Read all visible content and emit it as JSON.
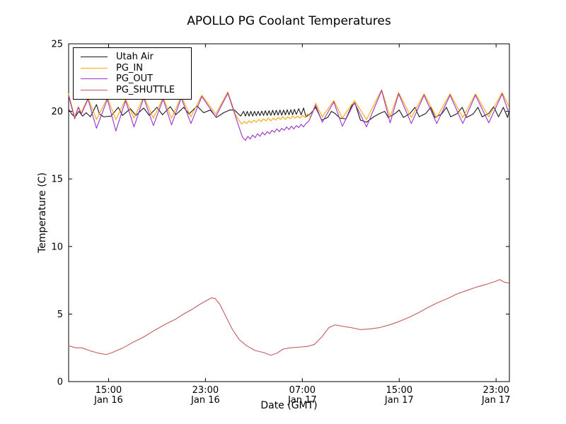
{
  "figure": {
    "background": "#ffffff"
  },
  "chart_data": {
    "type": "line",
    "title": "APOLLO PG Coolant Temperatures",
    "xlabel": "Date (GMT)",
    "ylabel": "Temperature (C)",
    "ylim": [
      0,
      25
    ],
    "y_ticks": [
      0,
      5,
      10,
      15,
      20,
      25
    ],
    "x_unit": "hours since Jan 16 00:00 GMT",
    "xlim": [
      11.7,
      48.1
    ],
    "x_ticks": [
      {
        "t": 15,
        "time": "15:00",
        "date": "Jan 16"
      },
      {
        "t": 23,
        "time": "23:00",
        "date": "Jan 16"
      },
      {
        "t": 31,
        "time": "07:00",
        "date": "Jan 17"
      },
      {
        "t": 39,
        "time": "15:00",
        "date": "Jan 17"
      },
      {
        "t": 47,
        "time": "23:00",
        "date": "Jan 17"
      }
    ],
    "grid": false,
    "legend_position": "upper left",
    "series": [
      {
        "name": "Utah Air",
        "color": "#1a1a1a",
        "points": [
          [
            11.7,
            20.15
          ],
          [
            12.0,
            19.75
          ],
          [
            12.25,
            19.6
          ],
          [
            12.55,
            20.0
          ],
          [
            12.85,
            19.65
          ],
          [
            13.15,
            19.9
          ],
          [
            13.5,
            19.6
          ],
          [
            14.0,
            20.5
          ],
          [
            14.25,
            19.8
          ],
          [
            14.6,
            19.6
          ],
          [
            15.2,
            19.65
          ],
          [
            15.8,
            20.3
          ],
          [
            16.15,
            19.7
          ],
          [
            16.8,
            20.2
          ],
          [
            17.25,
            19.7
          ],
          [
            17.9,
            20.25
          ],
          [
            18.35,
            19.7
          ],
          [
            19.0,
            20.3
          ],
          [
            19.45,
            19.75
          ],
          [
            20.1,
            20.35
          ],
          [
            20.55,
            19.75
          ],
          [
            21.2,
            20.3
          ],
          [
            21.65,
            19.8
          ],
          [
            22.3,
            20.4
          ],
          [
            22.85,
            19.9
          ],
          [
            23.4,
            20.1
          ],
          [
            23.9,
            19.55
          ],
          [
            24.5,
            19.9
          ],
          [
            25.0,
            20.1
          ],
          [
            25.4,
            20.1
          ],
          [
            25.9,
            19.65
          ],
          [
            26.15,
            20.0
          ],
          [
            26.3,
            19.65
          ],
          [
            26.45,
            20.0
          ],
          [
            26.6,
            19.65
          ],
          [
            26.75,
            20.0
          ],
          [
            26.9,
            19.65
          ],
          [
            27.05,
            20.0
          ],
          [
            27.2,
            19.68
          ],
          [
            27.35,
            20.0
          ],
          [
            27.5,
            19.68
          ],
          [
            27.65,
            20.02
          ],
          [
            27.8,
            19.7
          ],
          [
            27.95,
            20.05
          ],
          [
            28.1,
            19.7
          ],
          [
            28.25,
            20.05
          ],
          [
            28.4,
            19.7
          ],
          [
            28.55,
            20.08
          ],
          [
            28.7,
            19.72
          ],
          [
            28.85,
            20.08
          ],
          [
            29.0,
            19.72
          ],
          [
            29.15,
            20.1
          ],
          [
            29.3,
            19.72
          ],
          [
            29.45,
            20.1
          ],
          [
            29.6,
            19.75
          ],
          [
            29.75,
            20.12
          ],
          [
            29.9,
            19.75
          ],
          [
            30.05,
            20.12
          ],
          [
            30.2,
            19.75
          ],
          [
            30.35,
            20.15
          ],
          [
            30.5,
            19.78
          ],
          [
            30.7,
            20.2
          ],
          [
            30.9,
            19.75
          ],
          [
            31.1,
            20.25
          ],
          [
            31.3,
            19.6
          ],
          [
            31.7,
            19.85
          ],
          [
            32.1,
            20.3
          ],
          [
            32.6,
            19.35
          ],
          [
            33.1,
            19.55
          ],
          [
            33.4,
            20.0
          ],
          [
            33.7,
            19.85
          ],
          [
            34.1,
            19.5
          ],
          [
            34.6,
            19.45
          ],
          [
            35.1,
            20.45
          ],
          [
            35.35,
            20.6
          ],
          [
            35.8,
            19.35
          ],
          [
            36.3,
            19.2
          ],
          [
            36.9,
            19.6
          ],
          [
            37.4,
            19.85
          ],
          [
            37.8,
            20.0
          ],
          [
            38.1,
            19.55
          ],
          [
            38.6,
            19.8
          ],
          [
            39.0,
            20.1
          ],
          [
            39.35,
            19.55
          ],
          [
            39.9,
            19.85
          ],
          [
            40.3,
            20.3
          ],
          [
            40.65,
            19.6
          ],
          [
            41.2,
            19.85
          ],
          [
            41.6,
            20.3
          ],
          [
            41.95,
            19.55
          ],
          [
            42.5,
            19.8
          ],
          [
            42.9,
            20.3
          ],
          [
            43.25,
            19.6
          ],
          [
            43.8,
            19.85
          ],
          [
            44.2,
            20.3
          ],
          [
            44.55,
            19.55
          ],
          [
            45.1,
            19.8
          ],
          [
            45.5,
            20.3
          ],
          [
            45.85,
            19.6
          ],
          [
            46.4,
            19.85
          ],
          [
            46.8,
            20.35
          ],
          [
            47.2,
            19.6
          ],
          [
            47.6,
            20.3
          ],
          [
            47.95,
            19.55
          ],
          [
            48.05,
            19.95
          ]
        ]
      },
      {
        "name": "PG_IN",
        "color": "#ffa500",
        "points": [
          [
            11.7,
            21.3
          ],
          [
            12.2,
            19.6
          ],
          [
            12.5,
            20.35
          ],
          [
            12.75,
            19.9
          ],
          [
            13.3,
            21.0
          ],
          [
            14.0,
            19.4
          ],
          [
            14.9,
            21.0
          ],
          [
            15.6,
            19.4
          ],
          [
            16.4,
            20.9
          ],
          [
            17.1,
            19.5
          ],
          [
            17.9,
            21.1
          ],
          [
            18.7,
            19.5
          ],
          [
            19.5,
            21.0
          ],
          [
            20.2,
            19.5
          ],
          [
            21.0,
            21.1
          ],
          [
            21.8,
            19.6
          ],
          [
            22.7,
            21.2
          ],
          [
            23.85,
            19.8
          ],
          [
            24.85,
            21.45
          ],
          [
            25.5,
            19.7
          ],
          [
            26.0,
            19.05
          ],
          [
            26.2,
            19.25
          ],
          [
            26.4,
            19.1
          ],
          [
            26.6,
            19.3
          ],
          [
            26.8,
            19.15
          ],
          [
            27.0,
            19.35
          ],
          [
            27.2,
            19.2
          ],
          [
            27.4,
            19.4
          ],
          [
            27.6,
            19.25
          ],
          [
            27.8,
            19.45
          ],
          [
            28.0,
            19.3
          ],
          [
            28.2,
            19.5
          ],
          [
            28.4,
            19.3
          ],
          [
            28.6,
            19.5
          ],
          [
            28.8,
            19.35
          ],
          [
            29.0,
            19.55
          ],
          [
            29.2,
            19.4
          ],
          [
            29.4,
            19.6
          ],
          [
            29.6,
            19.4
          ],
          [
            29.8,
            19.6
          ],
          [
            30.0,
            19.45
          ],
          [
            30.2,
            19.65
          ],
          [
            30.4,
            19.5
          ],
          [
            30.6,
            19.65
          ],
          [
            30.8,
            19.5
          ],
          [
            31.0,
            19.7
          ],
          [
            31.2,
            19.55
          ],
          [
            31.45,
            19.8
          ],
          [
            31.7,
            19.6
          ],
          [
            32.1,
            20.6
          ],
          [
            32.65,
            19.6
          ],
          [
            33.6,
            20.8
          ],
          [
            34.3,
            19.5
          ],
          [
            35.3,
            20.8
          ],
          [
            36.3,
            19.4
          ],
          [
            37.55,
            21.6
          ],
          [
            38.25,
            19.6
          ],
          [
            38.95,
            21.4
          ],
          [
            40.0,
            19.55
          ],
          [
            41.05,
            21.3
          ],
          [
            42.1,
            19.55
          ],
          [
            43.2,
            21.3
          ],
          [
            44.25,
            19.55
          ],
          [
            45.3,
            21.3
          ],
          [
            46.4,
            19.6
          ],
          [
            47.5,
            21.4
          ],
          [
            48.05,
            20.4
          ]
        ]
      },
      {
        "name": "PG_OUT",
        "color": "#9932cc",
        "points": [
          [
            11.7,
            21.15
          ],
          [
            12.2,
            19.45
          ],
          [
            12.5,
            20.3
          ],
          [
            12.75,
            19.8
          ],
          [
            13.3,
            20.9
          ],
          [
            14.0,
            18.75
          ],
          [
            14.9,
            20.9
          ],
          [
            15.6,
            18.55
          ],
          [
            16.4,
            20.8
          ],
          [
            17.1,
            18.85
          ],
          [
            17.9,
            21.0
          ],
          [
            18.7,
            18.95
          ],
          [
            19.5,
            20.9
          ],
          [
            20.2,
            19.0
          ],
          [
            21.0,
            21.0
          ],
          [
            21.8,
            19.1
          ],
          [
            22.7,
            21.1
          ],
          [
            23.85,
            19.6
          ],
          [
            24.85,
            21.35
          ],
          [
            25.6,
            19.3
          ],
          [
            26.05,
            18.1
          ],
          [
            26.3,
            17.85
          ],
          [
            26.5,
            18.15
          ],
          [
            26.7,
            17.95
          ],
          [
            26.9,
            18.25
          ],
          [
            27.1,
            18.05
          ],
          [
            27.3,
            18.35
          ],
          [
            27.5,
            18.15
          ],
          [
            27.7,
            18.45
          ],
          [
            27.9,
            18.25
          ],
          [
            28.1,
            18.5
          ],
          [
            28.3,
            18.35
          ],
          [
            28.5,
            18.6
          ],
          [
            28.7,
            18.45
          ],
          [
            28.9,
            18.7
          ],
          [
            29.1,
            18.5
          ],
          [
            29.3,
            18.75
          ],
          [
            29.5,
            18.6
          ],
          [
            29.7,
            18.85
          ],
          [
            29.9,
            18.65
          ],
          [
            30.1,
            18.9
          ],
          [
            30.3,
            18.7
          ],
          [
            30.5,
            18.95
          ],
          [
            30.7,
            18.8
          ],
          [
            30.9,
            19.05
          ],
          [
            31.1,
            18.85
          ],
          [
            31.3,
            19.1
          ],
          [
            31.55,
            19.3
          ],
          [
            32.1,
            20.45
          ],
          [
            32.65,
            19.2
          ],
          [
            33.6,
            20.7
          ],
          [
            34.3,
            18.9
          ],
          [
            35.3,
            20.65
          ],
          [
            36.3,
            18.85
          ],
          [
            37.55,
            21.55
          ],
          [
            38.25,
            19.15
          ],
          [
            38.95,
            21.3
          ],
          [
            40.0,
            19.1
          ],
          [
            41.05,
            21.2
          ],
          [
            42.1,
            19.1
          ],
          [
            43.2,
            21.2
          ],
          [
            44.25,
            19.1
          ],
          [
            45.3,
            21.2
          ],
          [
            46.4,
            19.15
          ],
          [
            47.5,
            21.3
          ],
          [
            48.05,
            19.9
          ]
        ]
      },
      {
        "name": "PG_SHUTTLE",
        "color": "#c45c5c",
        "points": [
          [
            11.7,
            2.65
          ],
          [
            12.3,
            2.5
          ],
          [
            12.8,
            2.5
          ],
          [
            13.4,
            2.3
          ],
          [
            14.2,
            2.1
          ],
          [
            14.8,
            2.0
          ],
          [
            15.3,
            2.15
          ],
          [
            16.2,
            2.5
          ],
          [
            17.0,
            2.9
          ],
          [
            17.9,
            3.3
          ],
          [
            18.8,
            3.8
          ],
          [
            19.7,
            4.25
          ],
          [
            20.5,
            4.6
          ],
          [
            21.2,
            5.0
          ],
          [
            21.9,
            5.35
          ],
          [
            22.5,
            5.7
          ],
          [
            23.1,
            6.0
          ],
          [
            23.5,
            6.2
          ],
          [
            23.8,
            6.15
          ],
          [
            24.2,
            5.7
          ],
          [
            24.7,
            4.8
          ],
          [
            25.2,
            3.9
          ],
          [
            25.8,
            3.1
          ],
          [
            26.4,
            2.65
          ],
          [
            27.1,
            2.3
          ],
          [
            27.8,
            2.15
          ],
          [
            28.4,
            1.95
          ],
          [
            28.9,
            2.1
          ],
          [
            29.4,
            2.4
          ],
          [
            30.0,
            2.5
          ],
          [
            30.7,
            2.55
          ],
          [
            31.4,
            2.6
          ],
          [
            32.0,
            2.75
          ],
          [
            32.6,
            3.3
          ],
          [
            33.2,
            4.0
          ],
          [
            33.7,
            4.2
          ],
          [
            34.3,
            4.1
          ],
          [
            35.0,
            4.0
          ],
          [
            35.8,
            3.85
          ],
          [
            36.6,
            3.9
          ],
          [
            37.4,
            4.0
          ],
          [
            38.2,
            4.2
          ],
          [
            39.0,
            4.45
          ],
          [
            39.8,
            4.75
          ],
          [
            40.6,
            5.1
          ],
          [
            41.4,
            5.5
          ],
          [
            42.2,
            5.85
          ],
          [
            43.0,
            6.15
          ],
          [
            43.8,
            6.5
          ],
          [
            44.6,
            6.75
          ],
          [
            45.4,
            7.0
          ],
          [
            46.2,
            7.2
          ],
          [
            46.9,
            7.4
          ],
          [
            47.3,
            7.55
          ],
          [
            47.7,
            7.35
          ],
          [
            48.05,
            7.3
          ]
        ]
      }
    ]
  }
}
